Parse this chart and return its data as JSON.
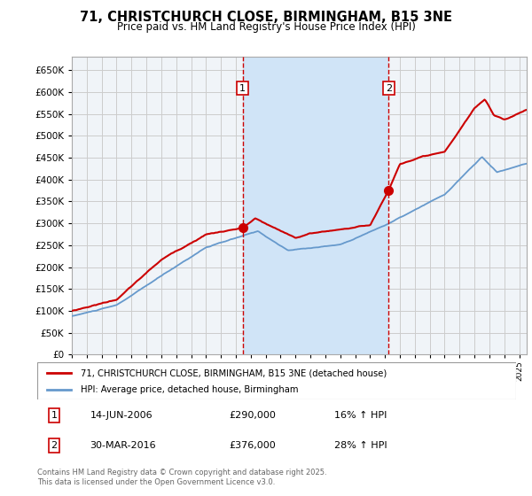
{
  "title": "71, CHRISTCHURCH CLOSE, BIRMINGHAM, B15 3NE",
  "subtitle": "Price paid vs. HM Land Registry's House Price Index (HPI)",
  "ylim": [
    0,
    680000
  ],
  "yticks": [
    0,
    50000,
    100000,
    150000,
    200000,
    250000,
    300000,
    350000,
    400000,
    450000,
    500000,
    550000,
    600000,
    650000
  ],
  "xlim_start": 1995,
  "xlim_end": 2025.5,
  "background_color": "#ffffff",
  "plot_bg_color": "#f0f4f8",
  "grid_color": "#cccccc",
  "sale1_date": 2006.45,
  "sale1_price": 290000,
  "sale2_date": 2016.25,
  "sale2_price": 376000,
  "red_line_color": "#cc0000",
  "blue_line_color": "#6699cc",
  "shade_color": "#d0e4f7",
  "legend_label_red": "71, CHRISTCHURCH CLOSE, BIRMINGHAM, B15 3NE (detached house)",
  "legend_label_blue": "HPI: Average price, detached house, Birmingham",
  "annotation1_text": "14-JUN-2006",
  "annotation1_price": "£290,000",
  "annotation1_hpi": "16% ↑ HPI",
  "annotation2_text": "30-MAR-2016",
  "annotation2_price": "£376,000",
  "annotation2_hpi": "28% ↑ HPI",
  "footer": "Contains HM Land Registry data © Crown copyright and database right 2025.\nThis data is licensed under the Open Government Licence v3.0."
}
